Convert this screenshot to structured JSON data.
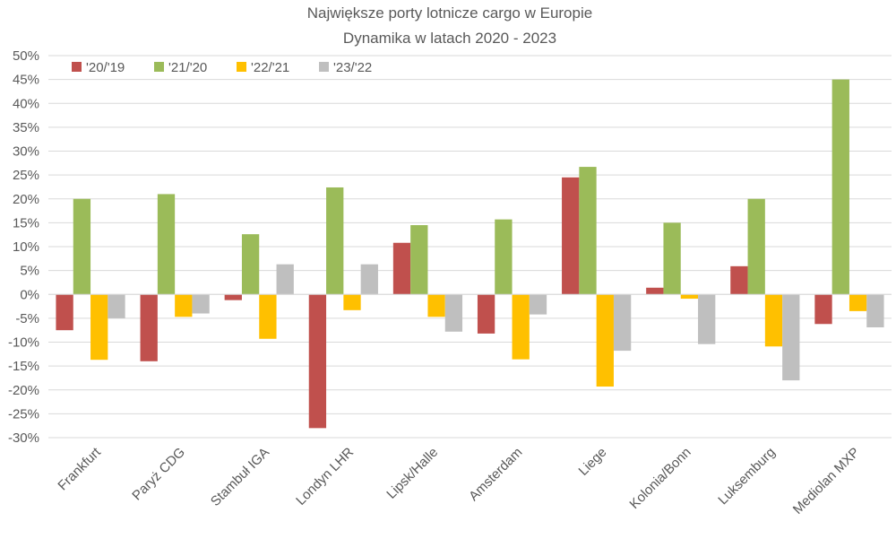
{
  "chart_data": {
    "type": "bar",
    "title": "Największe porty lotnicze cargo w Europie",
    "subtitle": "Dynamika w latach 2020 - 2023",
    "xlabel": "",
    "ylabel": "",
    "ylim": [
      -30,
      50
    ],
    "y_tick_values": [
      50,
      45,
      40,
      35,
      30,
      25,
      20,
      15,
      10,
      5,
      0,
      -5,
      -10,
      -15,
      -20,
      -25,
      -30
    ],
    "y_tick_labels": [
      "50%",
      "45%",
      "40%",
      "35%",
      "30%",
      "25%",
      "20%",
      "15%",
      "10%",
      "5%",
      "0%",
      "-5%",
      "-10%",
      "-15%",
      "-20%",
      "-25%",
      "-30%"
    ],
    "grid": true,
    "legend_position": "top-left",
    "categories": [
      "Frankfurt",
      "Paryż CDG",
      "Stambuł IGA",
      "Londyn LHR",
      "Lipsk/Halle",
      "Amsterdam",
      "Liege",
      "Kolonia/Bonn",
      "Luksemburg",
      "Mediolan MXP"
    ],
    "series": [
      {
        "name": "'20/'19",
        "color": "#c0504d",
        "values": [
          -7.5,
          -14,
          -1.2,
          -28,
          10.8,
          -8.2,
          24.5,
          1.4,
          5.9,
          -6.2
        ]
      },
      {
        "name": "'21/'20",
        "color": "#9bbb59",
        "values": [
          20,
          21,
          12.6,
          22.4,
          14.5,
          15.7,
          26.7,
          15,
          20,
          45
        ]
      },
      {
        "name": "'22/'21",
        "color": "#ffc000",
        "values": [
          -13.7,
          -4.7,
          -9.3,
          -3.3,
          -4.7,
          -13.6,
          -19.3,
          -0.9,
          -10.9,
          -3.5
        ]
      },
      {
        "name": "'23/'22",
        "color": "#bfbfbf",
        "values": [
          -5,
          -4,
          6.3,
          6.3,
          -7.8,
          -4.2,
          -11.8,
          -10.4,
          -18,
          -6.9
        ]
      }
    ]
  }
}
